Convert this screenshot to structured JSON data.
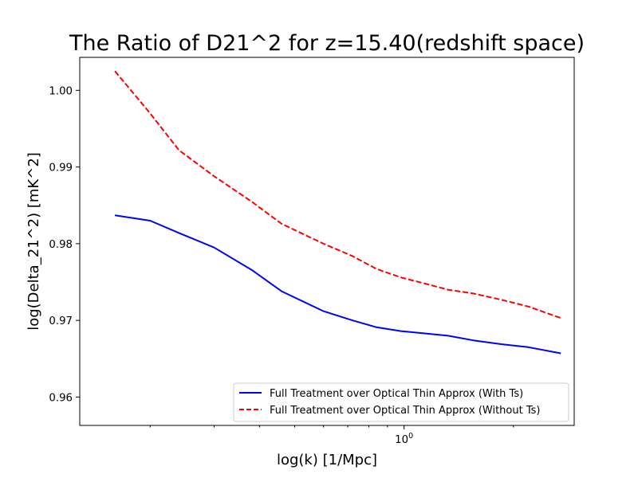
{
  "chart_data": {
    "type": "line",
    "title": "The Ratio of D21^2 for z=15.40(redshift space)",
    "xlabel": "log(k) [1/Mpc]",
    "ylabel": "log(Delta_21^2) [mK^2]",
    "x_scale": "log",
    "xlim": [
      0.128,
      2.94
    ],
    "ylim": [
      0.9563,
      1.0043
    ],
    "x_tick_labels": [
      "10^0"
    ],
    "y_ticks": [
      0.96,
      0.97,
      0.98,
      0.99,
      1.0
    ],
    "y_tick_labels": [
      "0.96",
      "0.97",
      "0.98",
      "0.99",
      "1.00"
    ],
    "grid": false,
    "legend_position": "lower-right",
    "series": [
      {
        "name": "Full Treatment over Optical Thin Approx (With Ts)",
        "color": "#0000ff",
        "line_style": "solid",
        "x": [
          0.16,
          0.2,
          0.24,
          0.3,
          0.38,
          0.46,
          0.6,
          0.72,
          0.84,
          0.98,
          1.14,
          1.32,
          1.55,
          1.85,
          2.2,
          2.7
        ],
        "y": [
          0.9837,
          0.983,
          0.9814,
          0.9795,
          0.9766,
          0.9738,
          0.9712,
          0.97,
          0.9691,
          0.9686,
          0.9683,
          0.968,
          0.9674,
          0.9669,
          0.9665,
          0.9657
        ]
      },
      {
        "name": "Full Treatment over Optical Thin Approx (Without Ts)",
        "color": "#ff0000",
        "line_style": "dashed",
        "x": [
          0.16,
          0.2,
          0.24,
          0.3,
          0.38,
          0.46,
          0.6,
          0.72,
          0.84,
          0.98,
          1.14,
          1.32,
          1.55,
          1.85,
          2.2,
          2.7
        ],
        "y": [
          1.0025,
          0.997,
          0.9922,
          0.9888,
          0.9855,
          0.9826,
          0.98,
          0.9784,
          0.9767,
          0.9756,
          0.9748,
          0.974,
          0.9735,
          0.9727,
          0.9718,
          0.9703
        ]
      }
    ]
  }
}
